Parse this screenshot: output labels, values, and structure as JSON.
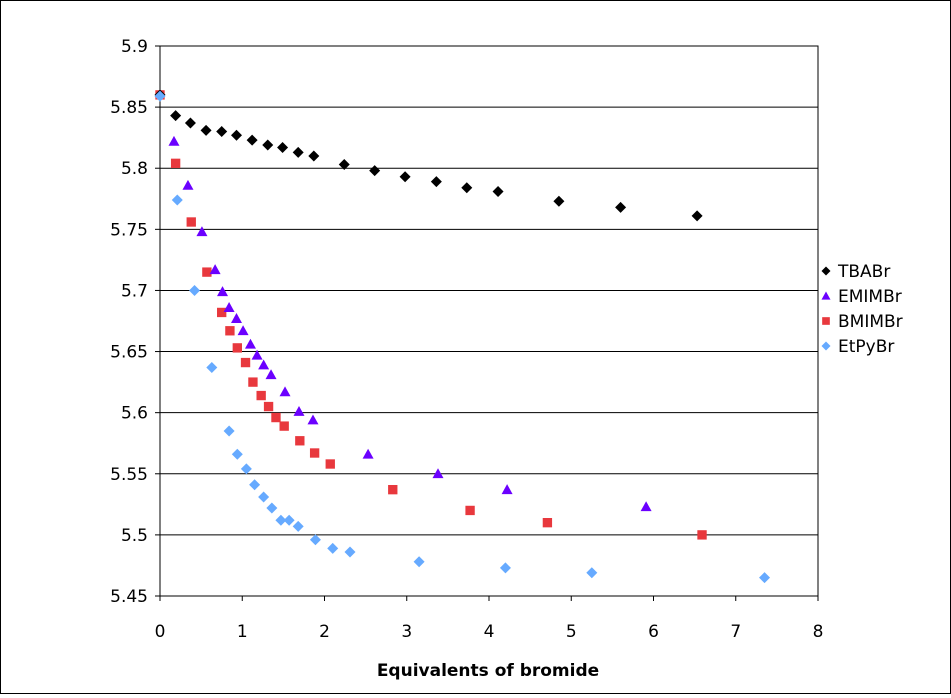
{
  "chart_data": {
    "type": "scatter",
    "title": "",
    "xlabel": "Equivalents of bromide",
    "ylabel": "",
    "xlim": [
      0,
      8
    ],
    "ylim": [
      5.45,
      5.9
    ],
    "x_ticks": [
      "0",
      "1",
      "2",
      "3",
      "4",
      "5",
      "6",
      "7",
      "8"
    ],
    "y_ticks": [
      "5.45",
      "5.5",
      "5.55",
      "5.6",
      "5.65",
      "5.7",
      "5.75",
      "5.8",
      "5.85",
      "5.9"
    ],
    "grid": "horizontal",
    "legend_position": "right",
    "series": [
      {
        "name": "TBABr",
        "marker": "diamond",
        "color": "#000000",
        "points": [
          [
            0,
            5.86
          ],
          [
            0.19,
            5.843
          ],
          [
            0.37,
            5.837
          ],
          [
            0.56,
            5.831
          ],
          [
            0.75,
            5.83
          ],
          [
            0.93,
            5.827
          ],
          [
            1.12,
            5.823
          ],
          [
            1.31,
            5.819
          ],
          [
            1.49,
            5.817
          ],
          [
            1.68,
            5.813
          ],
          [
            1.87,
            5.81
          ],
          [
            2.24,
            5.803
          ],
          [
            2.61,
            5.798
          ],
          [
            2.98,
            5.793
          ],
          [
            3.36,
            5.789
          ],
          [
            3.73,
            5.784
          ],
          [
            4.11,
            5.781
          ],
          [
            4.85,
            5.773
          ],
          [
            5.6,
            5.768
          ],
          [
            6.53,
            5.761
          ]
        ]
      },
      {
        "name": "EMIMBr",
        "marker": "triangle",
        "color": "#6b00ff",
        "points": [
          [
            0.17,
            5.822
          ],
          [
            0.34,
            5.786
          ],
          [
            0.51,
            5.748
          ],
          [
            0.67,
            5.717
          ],
          [
            0.76,
            5.699
          ],
          [
            0.84,
            5.686
          ],
          [
            0.93,
            5.677
          ],
          [
            1.01,
            5.667
          ],
          [
            1.1,
            5.656
          ],
          [
            1.18,
            5.647
          ],
          [
            1.26,
            5.639
          ],
          [
            1.35,
            5.631
          ],
          [
            1.52,
            5.617
          ],
          [
            1.69,
            5.601
          ],
          [
            1.86,
            5.594
          ],
          [
            2.53,
            5.566
          ],
          [
            3.38,
            5.55
          ],
          [
            4.22,
            5.537
          ],
          [
            5.91,
            5.523
          ]
        ]
      },
      {
        "name": "BMIMBr",
        "marker": "square",
        "color": "#e8383d",
        "points": [
          [
            0,
            5.86
          ],
          [
            0.19,
            5.804
          ],
          [
            0.38,
            5.756
          ],
          [
            0.57,
            5.715
          ],
          [
            0.75,
            5.682
          ],
          [
            0.85,
            5.667
          ],
          [
            0.94,
            5.653
          ],
          [
            1.04,
            5.641
          ],
          [
            1.13,
            5.625
          ],
          [
            1.23,
            5.614
          ],
          [
            1.32,
            5.605
          ],
          [
            1.41,
            5.596
          ],
          [
            1.51,
            5.589
          ],
          [
            1.7,
            5.577
          ],
          [
            1.88,
            5.567
          ],
          [
            2.07,
            5.558
          ],
          [
            2.83,
            5.537
          ],
          [
            3.77,
            5.52
          ],
          [
            4.71,
            5.51
          ],
          [
            6.59,
            5.5
          ]
        ]
      },
      {
        "name": "EtPyBr",
        "marker": "diamond",
        "color": "#66aaff",
        "points": [
          [
            0,
            5.859
          ],
          [
            0.21,
            5.774
          ],
          [
            0.42,
            5.7
          ],
          [
            0.63,
            5.637
          ],
          [
            0.84,
            5.585
          ],
          [
            0.94,
            5.566
          ],
          [
            1.05,
            5.554
          ],
          [
            1.15,
            5.541
          ],
          [
            1.26,
            5.531
          ],
          [
            1.36,
            5.522
          ],
          [
            1.47,
            5.512
          ],
          [
            1.57,
            5.512
          ],
          [
            1.68,
            5.507
          ],
          [
            1.89,
            5.496
          ],
          [
            2.1,
            5.489
          ],
          [
            2.31,
            5.486
          ],
          [
            3.15,
            5.478
          ],
          [
            4.2,
            5.473
          ],
          [
            5.25,
            5.469
          ],
          [
            7.35,
            5.465
          ]
        ]
      }
    ]
  }
}
